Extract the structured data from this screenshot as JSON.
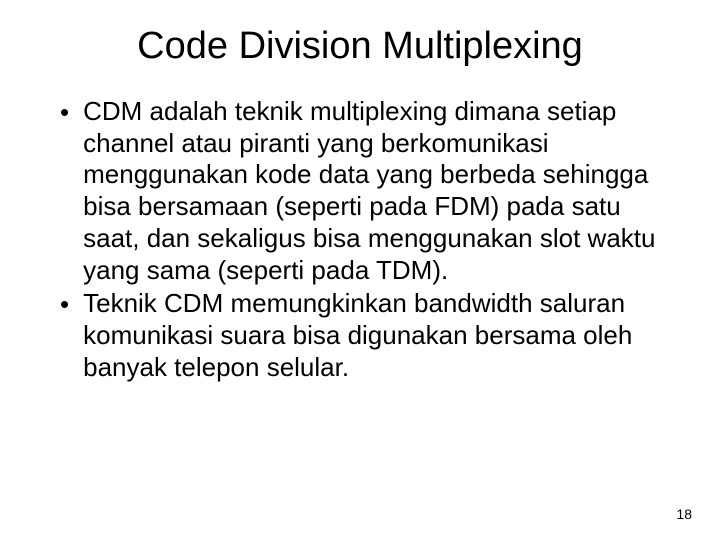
{
  "slide": {
    "title": "Code Division Multiplexing",
    "bullets": [
      "CDM adalah teknik multiplexing dimana setiap channel atau piranti yang berkomunikasi menggunakan kode data yang berbeda sehingga bisa bersamaan (seperti pada FDM) pada satu saat, dan sekaligus bisa menggunakan slot waktu yang sama (seperti pada TDM).",
      "Teknik CDM memungkinkan bandwidth saluran komunikasi suara bisa digunakan bersama oleh banyak telepon selular."
    ],
    "page_number": "18"
  },
  "styling": {
    "background_color": "#ffffff",
    "text_color": "#000000",
    "title_fontsize": 38,
    "body_fontsize": 26,
    "page_number_fontsize": 14,
    "font_family": "Arial"
  }
}
